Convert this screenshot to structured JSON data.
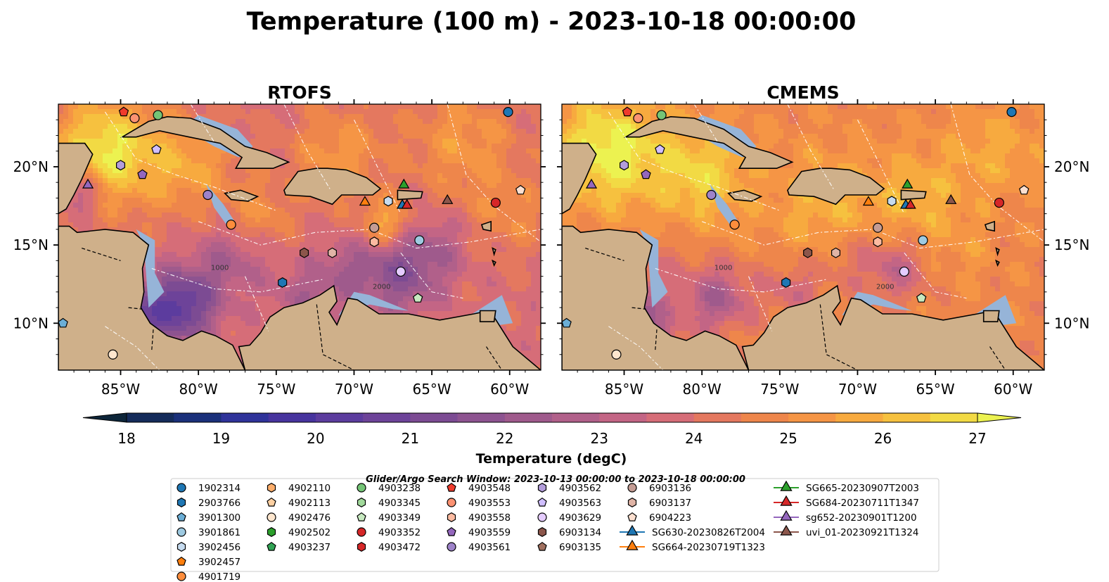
{
  "figure": {
    "title": "Temperature (100 m) - 2023-10-18 00:00:00",
    "colorbar_label": "Temperature (degC)",
    "search_window": "Glider/Argo Search Window: 2023-10-13 00:00:00 to 2023-10-18 00:00:00"
  },
  "chart_data": {
    "type": "heatmap",
    "panels": [
      {
        "title": "RTOFS",
        "ticks_side": "left"
      },
      {
        "title": "CMEMS",
        "ticks_side": "right"
      }
    ],
    "extent": {
      "lon": [
        -89,
        -58
      ],
      "lat": [
        7,
        24
      ]
    },
    "xticks": [
      {
        "value": -85,
        "label": "85°W"
      },
      {
        "value": -80,
        "label": "80°W"
      },
      {
        "value": -75,
        "label": "75°W"
      },
      {
        "value": -70,
        "label": "70°W"
      },
      {
        "value": -65,
        "label": "65°W"
      },
      {
        "value": -60,
        "label": "60°W"
      }
    ],
    "yticks": [
      {
        "value": 10,
        "label": "10°N"
      },
      {
        "value": 15,
        "label": "15°N"
      },
      {
        "value": 20,
        "label": "20°N"
      }
    ],
    "colorbar": {
      "min": 18,
      "max": 27,
      "step": 0.5,
      "extend": "both",
      "ticks": [
        "18",
        "19",
        "20",
        "21",
        "22",
        "23",
        "24",
        "25",
        "26",
        "27"
      ],
      "colors": [
        "#0d2539",
        "#142b5a",
        "#1a307a",
        "#2f339a",
        "#47349e",
        "#5c3c9e",
        "#6d4399",
        "#7c4b93",
        "#8d5390",
        "#9f5a8c",
        "#b1608a",
        "#c36585",
        "#d66d78",
        "#e4785f",
        "#ee864b",
        "#f59545",
        "#f7aa3f",
        "#f6c13f",
        "#f2da44",
        "#ecf250"
      ]
    },
    "land_color": "#cfb08a",
    "shelf_color": "#96b4d8",
    "profiles": [
      {
        "id": "1902314",
        "marker": "circle",
        "color": "#1f77b4",
        "lon": -60.1,
        "lat": 23.5
      },
      {
        "id": "2903766",
        "marker": "hexagon",
        "color": "#1f77b4",
        "lon": -74.6,
        "lat": 12.6
      },
      {
        "id": "3901300",
        "marker": "pentagon",
        "color": "#6baed6",
        "lon": -88.7,
        "lat": 10.0
      },
      {
        "id": "3901861",
        "marker": "circle",
        "color": "#9ecae1",
        "lon": -65.8,
        "lat": 15.3
      },
      {
        "id": "3902456",
        "marker": "hexagon",
        "color": "#c6dbef",
        "lon": -67.8,
        "lat": 17.8
      },
      {
        "id": "3902457",
        "marker": "pentagon",
        "color": "#ff7f0e",
        "lon": null,
        "lat": null
      },
      {
        "id": "4901719",
        "marker": "circle",
        "color": "#fd8d3c",
        "lon": -77.9,
        "lat": 16.3
      },
      {
        "id": "4902110",
        "marker": "hexagon",
        "color": "#fdae6b",
        "lon": null,
        "lat": null
      },
      {
        "id": "4902113",
        "marker": "pentagon",
        "color": "#fdd0a2",
        "lon": null,
        "lat": null
      },
      {
        "id": "4902476",
        "marker": "circle",
        "color": "#fee6ce",
        "lon": -85.5,
        "lat": 8.0
      },
      {
        "id": "4902502",
        "marker": "hexagon",
        "color": "#2ca02c",
        "lon": null,
        "lat": null
      },
      {
        "id": "4903237",
        "marker": "pentagon",
        "color": "#31a354",
        "lon": null,
        "lat": null
      },
      {
        "id": "4903238",
        "marker": "circle",
        "color": "#74c476",
        "lon": -82.6,
        "lat": 23.3
      },
      {
        "id": "4903345",
        "marker": "hexagon",
        "color": "#a1d99b",
        "lon": null,
        "lat": null
      },
      {
        "id": "4903349",
        "marker": "pentagon",
        "color": "#c7e9c0",
        "lon": -65.9,
        "lat": 11.6
      },
      {
        "id": "4903352",
        "marker": "circle",
        "color": "#d62728",
        "lon": -60.9,
        "lat": 17.7
      },
      {
        "id": "4903472",
        "marker": "hexagon",
        "color": "#d62728",
        "lon": null,
        "lat": null
      },
      {
        "id": "4903548",
        "marker": "pentagon",
        "color": "#ef3b2c",
        "lon": -84.8,
        "lat": 23.5
      },
      {
        "id": "4903553",
        "marker": "circle",
        "color": "#fc9272",
        "lon": -84.1,
        "lat": 23.1
      },
      {
        "id": "4903558",
        "marker": "hexagon",
        "color": "#fcbba1",
        "lon": -68.7,
        "lat": 15.2
      },
      {
        "id": "4903559",
        "marker": "pentagon",
        "color": "#9467bd",
        "lon": -83.6,
        "lat": 19.5
      },
      {
        "id": "4903561",
        "marker": "circle",
        "color": "#9e83c9",
        "lon": -79.4,
        "lat": 18.2
      },
      {
        "id": "4903562",
        "marker": "hexagon",
        "color": "#b39ddb",
        "lon": -85.0,
        "lat": 20.1
      },
      {
        "id": "4903563",
        "marker": "pentagon",
        "color": "#d0bfff",
        "lon": -82.7,
        "lat": 21.1
      },
      {
        "id": "4903629",
        "marker": "circle",
        "color": "#e5ccff",
        "lon": -67.0,
        "lat": 13.3
      },
      {
        "id": "6903134",
        "marker": "hexagon",
        "color": "#8c564b",
        "lon": -73.2,
        "lat": 14.5
      },
      {
        "id": "6903135",
        "marker": "pentagon",
        "color": "#a0705f",
        "lon": null,
        "lat": null
      },
      {
        "id": "6903136",
        "marker": "circle",
        "color": "#c49c94",
        "lon": -68.7,
        "lat": 16.1
      },
      {
        "id": "6903137",
        "marker": "hexagon",
        "color": "#e0b4a6",
        "lon": -71.4,
        "lat": 14.5
      },
      {
        "id": "6904223",
        "marker": "pentagon",
        "color": "#fde0d0",
        "lon": -59.3,
        "lat": 18.5
      },
      {
        "id": "SG630-20230826T2004",
        "marker": "triangle",
        "color": "#1f77b4",
        "lon": -66.9,
        "lat": 17.6
      },
      {
        "id": "SG664-20230719T1323",
        "marker": "triangle",
        "color": "#ff7f0e",
        "lon": -69.3,
        "lat": 17.8
      },
      {
        "id": "SG665-20230907T2003",
        "marker": "triangle",
        "color": "#2ca02c",
        "lon": -66.8,
        "lat": 18.9
      },
      {
        "id": "SG684-20230711T1347",
        "marker": "triangle",
        "color": "#d62728",
        "lon": -66.6,
        "lat": 17.6
      },
      {
        "id": "sg652-20230901T1200",
        "marker": "triangle",
        "color": "#9467bd",
        "lon": -87.1,
        "lat": 18.9
      },
      {
        "id": "uvi_01-20230921T1324",
        "marker": "triangle",
        "color": "#8c564b",
        "lon": -64.0,
        "lat": 17.9
      }
    ],
    "contour_labels": [
      "1000",
      "2000",
      "1000",
      "2000"
    ]
  }
}
